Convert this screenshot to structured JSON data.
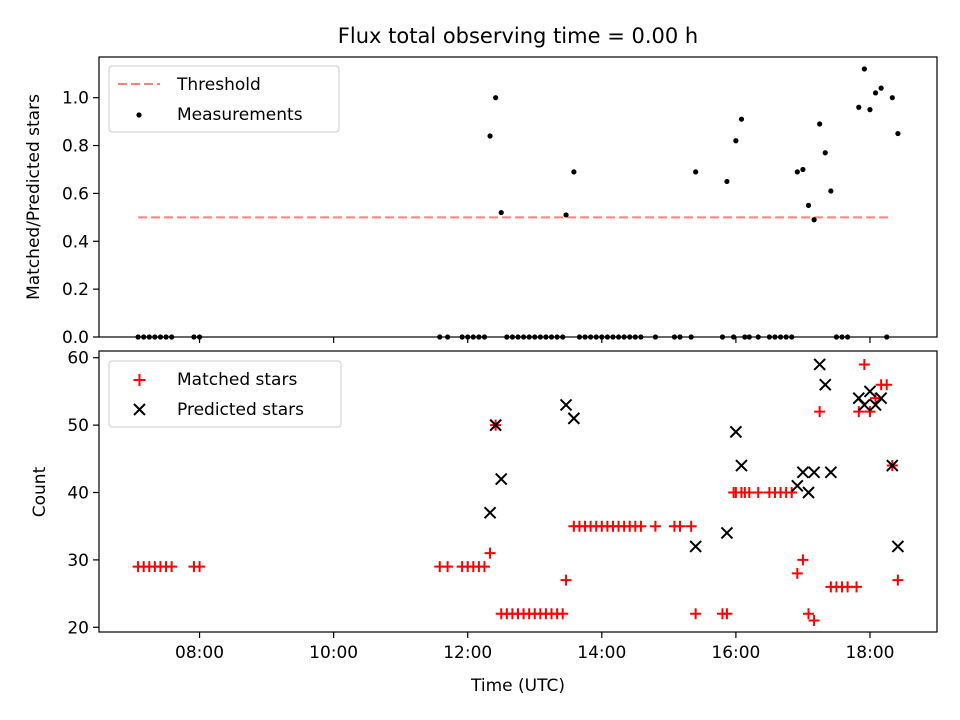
{
  "title": "Flux total observing time = 0.00 h",
  "xlabel": "Time (UTC)",
  "x_ticks": [
    "08:00",
    "10:00",
    "12:00",
    "14:00",
    "16:00",
    "18:00"
  ],
  "colors": {
    "threshold": "#ff7f7f",
    "measurement": "#000000",
    "matched": "#ff0000",
    "predicted": "#000000"
  },
  "chart_data": [
    {
      "type": "scatter",
      "ylabel": "Matched/Predicted stars",
      "xlim": [
        "06:30",
        "19:00"
      ],
      "ylim": [
        0,
        1.17
      ],
      "y_ticks": [
        "0.0",
        "0.2",
        "0.4",
        "0.6",
        "0.8",
        "1.0"
      ],
      "legend": {
        "position": "top-left",
        "entries": [
          "Threshold",
          "Measurements"
        ]
      },
      "threshold": {
        "name": "Threshold",
        "value": 0.5,
        "x_range": [
          "07:05",
          "18:20"
        ]
      },
      "series": [
        {
          "name": "Measurements",
          "points": [
            [
              "07:05",
              0
            ],
            [
              "07:10",
              0
            ],
            [
              "07:15",
              0
            ],
            [
              "07:20",
              0
            ],
            [
              "07:25",
              0
            ],
            [
              "07:30",
              0
            ],
            [
              "07:35",
              0
            ],
            [
              "07:55",
              0
            ],
            [
              "08:00",
              0
            ],
            [
              "11:35",
              0
            ],
            [
              "11:42",
              0
            ],
            [
              "11:55",
              0
            ],
            [
              "12:00",
              0
            ],
            [
              "12:05",
              0
            ],
            [
              "12:10",
              0
            ],
            [
              "12:15",
              0
            ],
            [
              "12:20",
              0.84
            ],
            [
              "12:25",
              1.0
            ],
            [
              "12:30",
              0.52
            ],
            [
              "12:35",
              0
            ],
            [
              "12:40",
              0
            ],
            [
              "12:45",
              0
            ],
            [
              "12:50",
              0
            ],
            [
              "12:55",
              0
            ],
            [
              "13:00",
              0
            ],
            [
              "13:05",
              0
            ],
            [
              "13:10",
              0
            ],
            [
              "13:15",
              0
            ],
            [
              "13:20",
              0
            ],
            [
              "13:25",
              0
            ],
            [
              "13:28",
              0.51
            ],
            [
              "13:35",
              0.69
            ],
            [
              "13:40",
              0
            ],
            [
              "13:45",
              0
            ],
            [
              "13:50",
              0
            ],
            [
              "13:55",
              0
            ],
            [
              "14:00",
              0
            ],
            [
              "14:05",
              0
            ],
            [
              "14:10",
              0
            ],
            [
              "14:15",
              0
            ],
            [
              "14:20",
              0
            ],
            [
              "14:25",
              0
            ],
            [
              "14:30",
              0
            ],
            [
              "14:35",
              0
            ],
            [
              "14:48",
              0
            ],
            [
              "15:05",
              0
            ],
            [
              "15:10",
              0
            ],
            [
              "15:20",
              0
            ],
            [
              "15:24",
              0.69
            ],
            [
              "15:48",
              0
            ],
            [
              "15:52",
              0.65
            ],
            [
              "15:58",
              0
            ],
            [
              "16:00",
              0.82
            ],
            [
              "16:05",
              0.91
            ],
            [
              "16:08",
              0
            ],
            [
              "16:12",
              0
            ],
            [
              "16:20",
              0
            ],
            [
              "16:30",
              0
            ],
            [
              "16:35",
              0
            ],
            [
              "16:40",
              0
            ],
            [
              "16:45",
              0
            ],
            [
              "16:50",
              0
            ],
            [
              "16:55",
              0.69
            ],
            [
              "17:00",
              0.7
            ],
            [
              "17:05",
              0.55
            ],
            [
              "17:10",
              0.49
            ],
            [
              "17:15",
              0.89
            ],
            [
              "17:20",
              0.77
            ],
            [
              "17:25",
              0.61
            ],
            [
              "17:30",
              0
            ],
            [
              "17:35",
              0
            ],
            [
              "17:40",
              0
            ],
            [
              "17:50",
              0.96
            ],
            [
              "17:55",
              1.12
            ],
            [
              "18:00",
              0.95
            ],
            [
              "18:05",
              1.02
            ],
            [
              "18:10",
              1.04
            ],
            [
              "18:15",
              0
            ],
            [
              "18:20",
              1.0
            ],
            [
              "18:25",
              0.85
            ]
          ]
        }
      ]
    },
    {
      "type": "scatter",
      "ylabel": "Count",
      "xlim": [
        "06:30",
        "19:00"
      ],
      "ylim": [
        19.3,
        61
      ],
      "y_ticks": [
        "20",
        "30",
        "40",
        "50",
        "60"
      ],
      "legend": {
        "position": "top-left",
        "entries": [
          "Matched stars",
          "Predicted stars"
        ]
      },
      "series": [
        {
          "name": "Matched stars",
          "points": [
            [
              "07:05",
              29
            ],
            [
              "07:10",
              29
            ],
            [
              "07:15",
              29
            ],
            [
              "07:20",
              29
            ],
            [
              "07:25",
              29
            ],
            [
              "07:30",
              29
            ],
            [
              "07:35",
              29
            ],
            [
              "07:55",
              29
            ],
            [
              "08:00",
              29
            ],
            [
              "11:35",
              29
            ],
            [
              "11:42",
              29
            ],
            [
              "11:55",
              29
            ],
            [
              "12:00",
              29
            ],
            [
              "12:05",
              29
            ],
            [
              "12:10",
              29
            ],
            [
              "12:15",
              29
            ],
            [
              "12:20",
              31
            ],
            [
              "12:25",
              50
            ],
            [
              "12:30",
              22
            ],
            [
              "12:35",
              22
            ],
            [
              "12:40",
              22
            ],
            [
              "12:45",
              22
            ],
            [
              "12:50",
              22
            ],
            [
              "12:55",
              22
            ],
            [
              "13:00",
              22
            ],
            [
              "13:05",
              22
            ],
            [
              "13:10",
              22
            ],
            [
              "13:15",
              22
            ],
            [
              "13:20",
              22
            ],
            [
              "13:25",
              22
            ],
            [
              "13:28",
              27
            ],
            [
              "13:35",
              35
            ],
            [
              "13:40",
              35
            ],
            [
              "13:45",
              35
            ],
            [
              "13:50",
              35
            ],
            [
              "13:55",
              35
            ],
            [
              "14:00",
              35
            ],
            [
              "14:05",
              35
            ],
            [
              "14:10",
              35
            ],
            [
              "14:15",
              35
            ],
            [
              "14:20",
              35
            ],
            [
              "14:25",
              35
            ],
            [
              "14:30",
              35
            ],
            [
              "14:35",
              35
            ],
            [
              "14:48",
              35
            ],
            [
              "15:05",
              35
            ],
            [
              "15:10",
              35
            ],
            [
              "15:20",
              35
            ],
            [
              "15:24",
              22
            ],
            [
              "15:48",
              22
            ],
            [
              "15:52",
              22
            ],
            [
              "15:58",
              40
            ],
            [
              "16:00",
              40
            ],
            [
              "16:05",
              40
            ],
            [
              "16:08",
              40
            ],
            [
              "16:12",
              40
            ],
            [
              "16:20",
              40
            ],
            [
              "16:30",
              40
            ],
            [
              "16:35",
              40
            ],
            [
              "16:40",
              40
            ],
            [
              "16:45",
              40
            ],
            [
              "16:50",
              40
            ],
            [
              "16:55",
              28
            ],
            [
              "17:00",
              30
            ],
            [
              "17:05",
              22
            ],
            [
              "17:10",
              21
            ],
            [
              "17:15",
              52
            ],
            [
              "17:25",
              26
            ],
            [
              "17:30",
              26
            ],
            [
              "17:35",
              26
            ],
            [
              "17:40",
              26
            ],
            [
              "17:48",
              26
            ],
            [
              "17:50",
              52
            ],
            [
              "17:55",
              59
            ],
            [
              "18:00",
              52
            ],
            [
              "18:05",
              54
            ],
            [
              "18:10",
              56
            ],
            [
              "18:15",
              56
            ],
            [
              "18:20",
              44
            ],
            [
              "18:25",
              27
            ]
          ]
        },
        {
          "name": "Predicted stars",
          "points": [
            [
              "12:20",
              37
            ],
            [
              "12:25",
              50
            ],
            [
              "12:30",
              42
            ],
            [
              "13:28",
              53
            ],
            [
              "13:35",
              51
            ],
            [
              "15:24",
              32
            ],
            [
              "15:52",
              34
            ],
            [
              "16:00",
              49
            ],
            [
              "16:05",
              44
            ],
            [
              "16:55",
              41
            ],
            [
              "17:00",
              43
            ],
            [
              "17:05",
              40
            ],
            [
              "17:10",
              43
            ],
            [
              "17:15",
              59
            ],
            [
              "17:20",
              56
            ],
            [
              "17:25",
              43
            ],
            [
              "17:50",
              54
            ],
            [
              "17:55",
              53
            ],
            [
              "18:00",
              55
            ],
            [
              "18:05",
              53
            ],
            [
              "18:10",
              54
            ],
            [
              "18:20",
              44
            ],
            [
              "18:25",
              32
            ]
          ]
        }
      ]
    }
  ]
}
